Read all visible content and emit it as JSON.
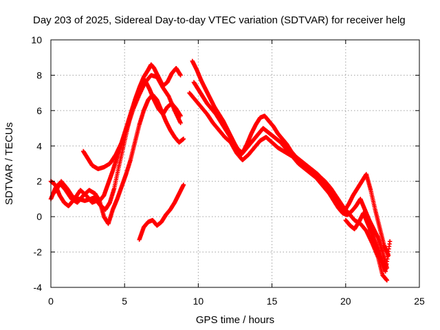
{
  "chart_data": {
    "type": "scatter",
    "title": "Day 203 of 2025, Sidereal Day-to-day VTEC variation (SDTVAR) for receiver helg",
    "xlabel": "GPS time / hours",
    "ylabel": "SDTVAR / TECUs",
    "xlim": [
      0,
      25
    ],
    "ylim": [
      -4,
      10
    ],
    "xticks": [
      0,
      5,
      10,
      15,
      20,
      25
    ],
    "xtick_labels": [
      "0",
      "5",
      "10",
      "15",
      "20",
      "25"
    ],
    "yticks": [
      -4,
      -2,
      0,
      2,
      4,
      6,
      8,
      10
    ],
    "ytick_labels": [
      "-4",
      "-2",
      "0",
      "2",
      "4",
      "6",
      "8",
      "10"
    ],
    "grid": true,
    "legend": "none",
    "marker": "plus",
    "color": "#ff0000",
    "series": [
      {
        "name": "trace-1",
        "x": [
          0.0,
          0.3,
          0.6,
          1.0,
          1.4,
          1.8,
          2.2,
          2.6,
          3.0,
          3.3,
          3.6,
          3.9,
          4.2,
          4.5,
          4.8,
          5.1,
          5.4,
          5.7,
          6.0,
          6.3,
          6.6,
          6.8,
          7.0,
          7.3,
          7.6,
          7.9,
          8.2,
          8.5,
          8.8
        ],
        "y": [
          1.0,
          1.6,
          1.9,
          1.5,
          1.0,
          0.8,
          1.2,
          1.5,
          1.3,
          0.9,
          1.2,
          1.9,
          2.6,
          3.4,
          4.2,
          5.0,
          5.8,
          6.6,
          7.3,
          7.9,
          8.3,
          8.6,
          8.4,
          7.9,
          7.4,
          7.6,
          8.1,
          8.4,
          8.0
        ]
      },
      {
        "name": "trace-2",
        "x": [
          0.0,
          0.3,
          0.6,
          0.9,
          1.2,
          1.6,
          2.0,
          2.4,
          2.8,
          3.1,
          3.4,
          3.7,
          4.0,
          4.3,
          4.6,
          4.9,
          5.2,
          5.5,
          5.8,
          6.1,
          6.4,
          6.7,
          7.0,
          7.3,
          7.6,
          7.9,
          8.2,
          8.5,
          8.8
        ],
        "y": [
          2.0,
          1.8,
          1.2,
          0.8,
          0.6,
          1.0,
          1.5,
          1.2,
          0.8,
          0.9,
          0.6,
          0.4,
          0.8,
          1.6,
          2.8,
          3.9,
          5.0,
          6.0,
          6.8,
          7.4,
          7.7,
          7.2,
          6.6,
          6.1,
          5.8,
          6.2,
          6.4,
          6.1,
          5.7
        ]
      },
      {
        "name": "trace-3",
        "x": [
          0.3,
          0.7,
          1.1,
          1.5,
          1.9,
          2.3,
          2.7,
          3.0,
          3.3,
          3.6,
          3.9,
          4.2,
          4.5,
          4.8,
          5.1,
          5.4,
          5.7,
          6.0,
          6.3,
          6.6,
          6.9,
          7.2,
          7.5,
          7.8,
          8.1,
          8.4,
          8.7,
          9.0
        ],
        "y": [
          1.4,
          2.0,
          1.6,
          1.1,
          1.0,
          0.9,
          1.0,
          1.1,
          0.9,
          0.0,
          -0.4,
          0.4,
          1.0,
          1.7,
          2.4,
          3.2,
          4.2,
          5.2,
          6.0,
          6.6,
          6.9,
          6.6,
          6.0,
          5.4,
          4.9,
          4.5,
          4.2,
          4.4
        ]
      },
      {
        "name": "trace-4",
        "x": [
          2.2,
          2.5,
          2.8,
          3.2,
          3.6,
          4.0,
          4.4,
          4.8,
          5.2,
          5.6,
          6.0,
          6.4,
          6.8,
          7.2,
          7.6,
          8.0,
          8.4,
          8.8
        ],
        "y": [
          3.7,
          3.3,
          2.9,
          2.7,
          2.8,
          3.0,
          3.5,
          4.2,
          5.1,
          6.1,
          6.9,
          7.6,
          8.0,
          7.9,
          7.3,
          6.8,
          6.0,
          5.3
        ]
      },
      {
        "name": "trace-5",
        "x": [
          6.0,
          6.3,
          6.6,
          6.9,
          7.2,
          7.5,
          7.8,
          8.1,
          8.4,
          8.7,
          9.0
        ],
        "y": [
          -1.3,
          -0.6,
          -0.3,
          -0.2,
          -0.5,
          -0.3,
          0.1,
          0.4,
          0.8,
          1.3,
          1.8
        ]
      },
      {
        "name": "trace-6",
        "x": [
          9.6,
          9.9,
          10.2,
          10.5,
          10.8,
          11.1,
          11.4,
          11.7,
          12.0,
          12.3,
          12.6,
          12.9,
          13.2,
          13.5,
          13.8,
          14.1,
          14.4,
          14.7,
          15.0,
          15.3,
          15.6,
          15.9,
          16.2,
          16.5,
          16.8,
          17.1,
          17.4,
          17.7,
          18.0,
          18.3,
          18.6,
          18.9,
          19.2,
          19.5,
          19.8,
          20.1,
          20.4,
          20.7,
          21.0,
          21.3,
          21.6,
          21.9,
          22.2,
          22.5,
          22.8
        ],
        "y": [
          8.8,
          8.3,
          7.7,
          7.2,
          6.7,
          6.2,
          5.8,
          5.4,
          4.9,
          4.4,
          3.9,
          3.5,
          3.8,
          4.1,
          4.4,
          4.7,
          5.0,
          4.8,
          4.6,
          4.4,
          4.2,
          3.9,
          3.6,
          3.3,
          3.0,
          2.8,
          2.6,
          2.4,
          2.2,
          1.9,
          1.6,
          1.3,
          0.9,
          0.5,
          0.2,
          0.1,
          0.3,
          0.6,
          1.0,
          0.4,
          -0.2,
          -0.7,
          -1.2,
          -2.0,
          -2.9
        ]
      },
      {
        "name": "trace-7",
        "x": [
          9.7,
          10.0,
          10.3,
          10.6,
          10.9,
          11.2,
          11.5,
          11.8,
          12.1,
          12.4,
          12.7,
          13.0,
          13.3,
          13.6,
          13.9,
          14.2,
          14.5,
          14.8,
          15.1,
          15.4,
          15.7,
          16.0,
          16.3,
          16.6,
          16.9,
          17.2,
          17.5,
          17.8,
          18.1,
          18.4,
          18.7,
          19.0,
          19.3,
          19.6,
          19.9,
          20.2,
          20.5,
          20.8,
          21.1,
          21.4,
          21.7,
          22.0,
          22.3,
          22.6,
          22.9
        ],
        "y": [
          7.6,
          7.2,
          6.8,
          6.4,
          6.1,
          5.8,
          5.4,
          5.0,
          4.6,
          4.2,
          3.8,
          3.6,
          4.1,
          4.7,
          5.2,
          5.6,
          5.7,
          5.4,
          5.1,
          4.7,
          4.4,
          4.1,
          3.7,
          3.4,
          3.2,
          3.0,
          2.8,
          2.6,
          2.4,
          2.1,
          1.8,
          1.4,
          1.0,
          0.6,
          0.3,
          0.7,
          1.2,
          1.6,
          2.0,
          2.4,
          1.5,
          0.4,
          -0.6,
          -1.6,
          -2.2
        ]
      },
      {
        "name": "trace-8",
        "x": [
          9.4,
          9.8,
          10.2,
          10.6,
          11.0,
          11.4,
          11.8,
          12.2,
          12.6,
          13.0,
          13.4,
          13.8,
          14.2,
          14.6,
          15.0,
          15.4,
          15.8,
          16.2,
          16.6,
          17.0,
          17.4,
          17.8,
          18.2,
          18.6,
          19.0,
          19.4,
          19.8,
          20.2,
          20.6,
          21.0,
          21.4,
          21.8,
          22.2,
          22.5,
          22.8
        ],
        "y": [
          7.0,
          6.6,
          6.2,
          5.8,
          5.3,
          4.9,
          4.5,
          4.2,
          3.6,
          3.2,
          3.5,
          3.9,
          4.3,
          4.5,
          4.2,
          3.9,
          3.7,
          3.5,
          3.3,
          3.1,
          2.8,
          2.6,
          2.3,
          2.0,
          1.6,
          1.1,
          0.6,
          0.2,
          -0.2,
          -0.4,
          -0.8,
          -1.5,
          -2.3,
          -3.3,
          -3.6
        ]
      },
      {
        "name": "trace-9",
        "x": [
          20.0,
          20.3,
          20.6,
          20.9,
          21.2,
          21.5,
          21.8,
          22.1,
          22.4,
          22.7,
          23.0
        ],
        "y": [
          -0.2,
          -0.5,
          -0.7,
          -0.3,
          0.2,
          -0.4,
          -1.0,
          -1.7,
          -2.4,
          -3.1,
          -1.4
        ]
      }
    ]
  }
}
